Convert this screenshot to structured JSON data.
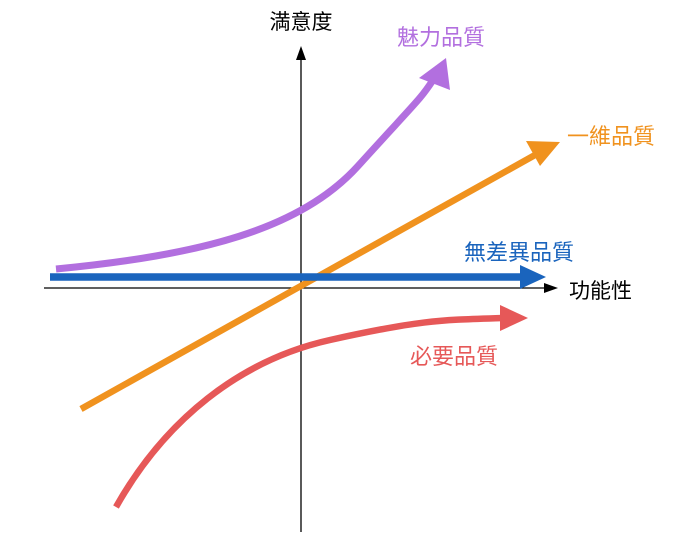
{
  "axes": {
    "y_label": "満意度",
    "x_label": "功能性"
  },
  "curves": {
    "attractive": {
      "label": "魅力品質",
      "color": "#b26fdf"
    },
    "one_dimensional": {
      "label": "一維品質",
      "color": "#f0921e"
    },
    "indifferent": {
      "label": "無差異品質",
      "color": "#1a64bd"
    },
    "must_be": {
      "label": "必要品質",
      "color": "#e65858"
    }
  }
}
